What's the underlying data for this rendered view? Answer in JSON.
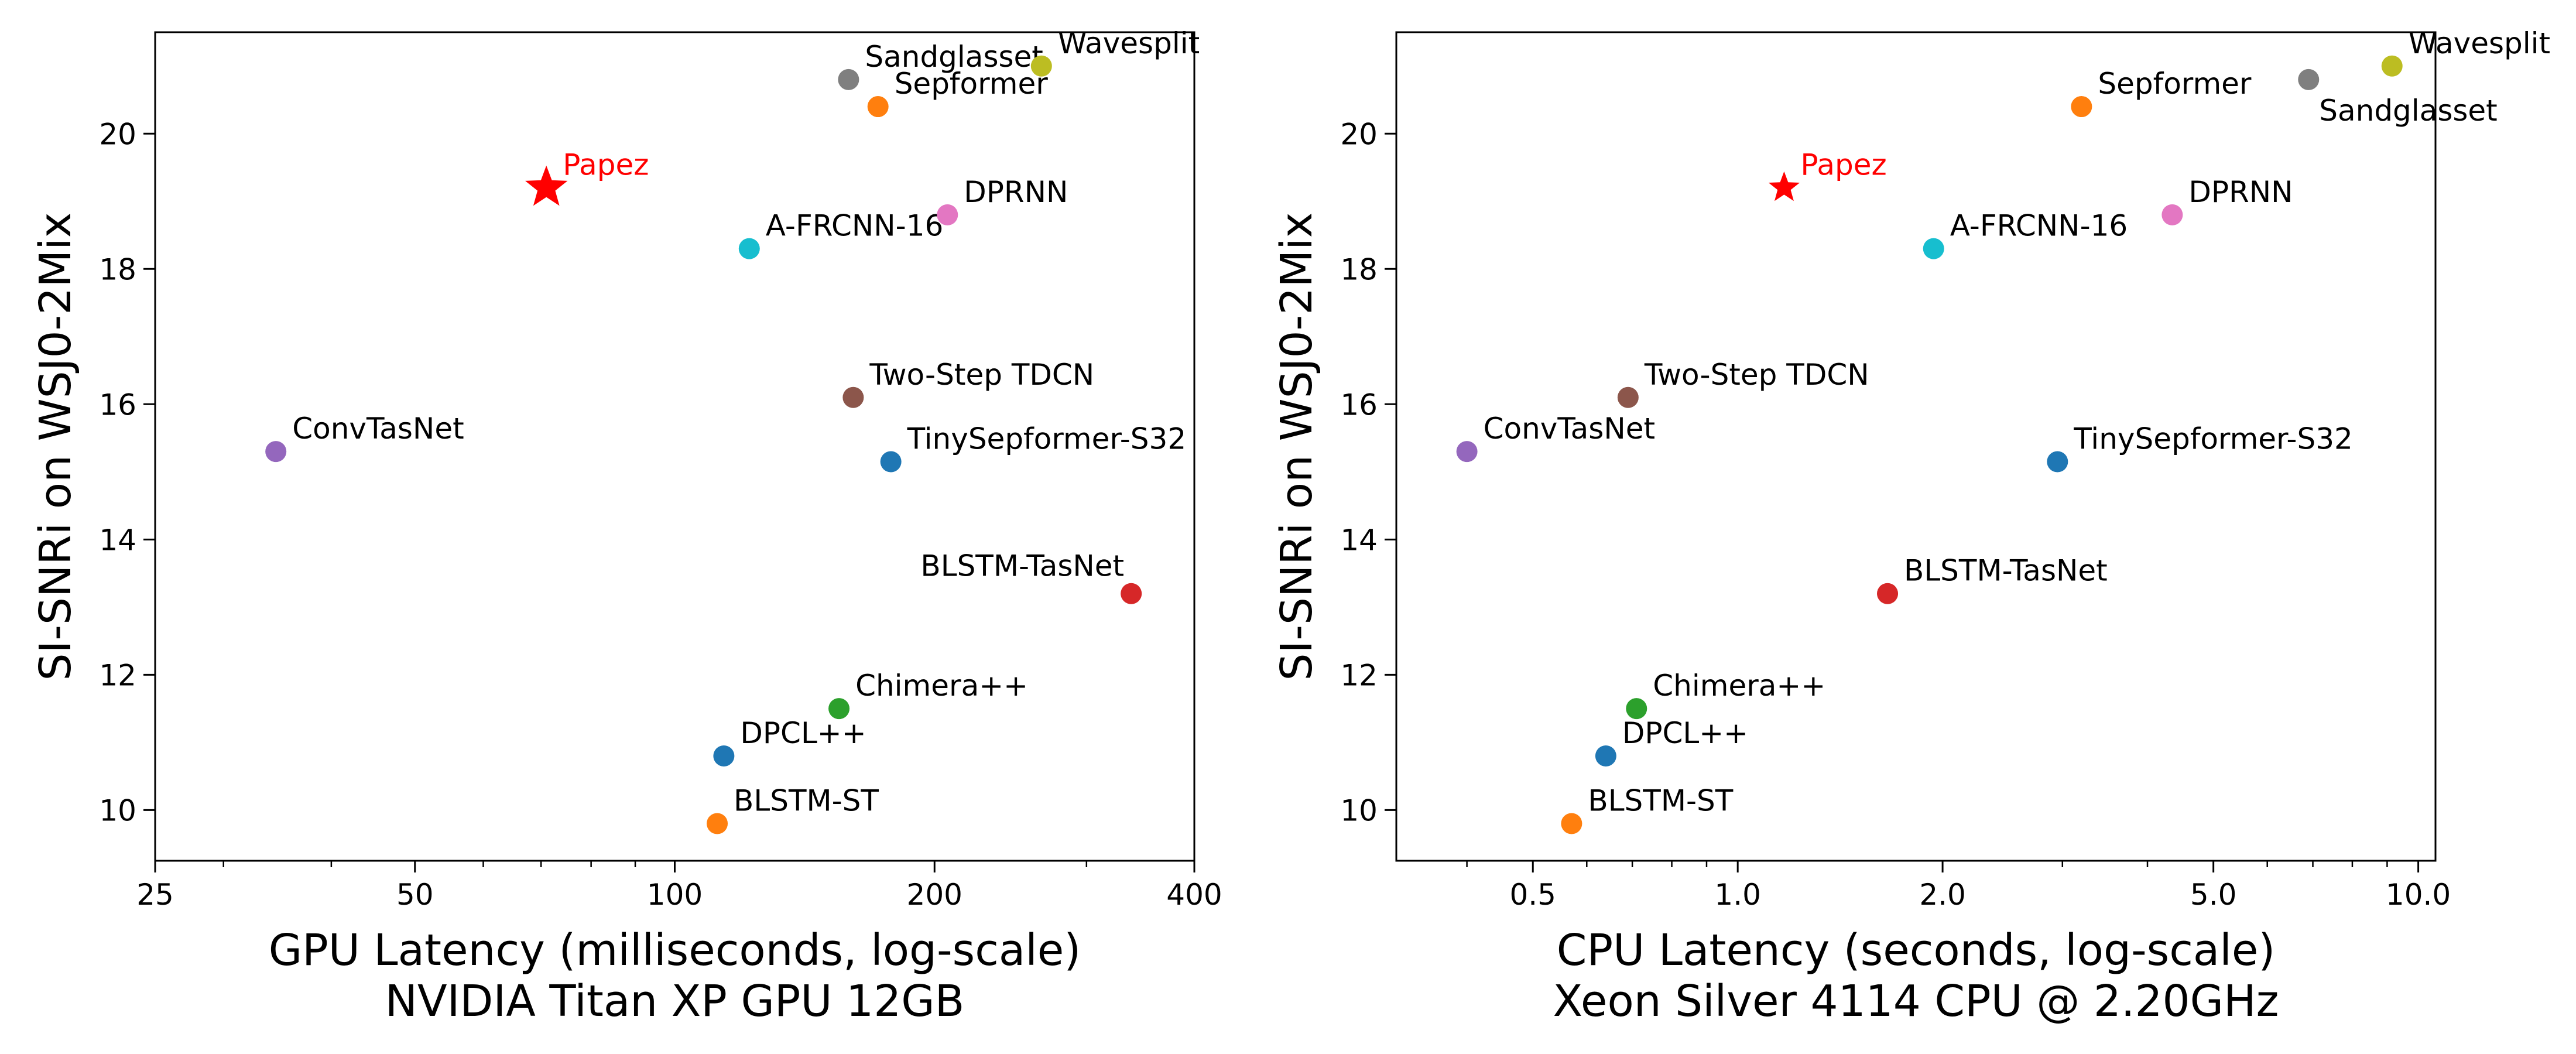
{
  "chart_data": [
    {
      "type": "scatter",
      "title": "",
      "xlabel": "GPU Latency (milliseconds, log-scale)",
      "xlabel_line2": "NVIDIA Titan XP GPU 12GB",
      "ylabel": "SI-SNRi on WSJ0-2Mix",
      "xscale": "log",
      "xlim": [
        25,
        400
      ],
      "ylim": [
        9.25,
        21.5
      ],
      "xticks": [
        25,
        50,
        100,
        200,
        400
      ],
      "xtick_labels": [
        "25",
        "50",
        "100",
        "200",
        "400"
      ],
      "yticks": [
        10,
        12,
        14,
        16,
        18,
        20
      ],
      "ytick_labels": [
        "10",
        "12",
        "14",
        "16",
        "18",
        "20"
      ],
      "grid": false,
      "legend": "none",
      "points": [
        {
          "label": "Papez",
          "x": 71,
          "y": 19.2,
          "color": "#ff0000",
          "marker": "star",
          "label_pos": "right"
        },
        {
          "label": "ConvTasNet",
          "x": 34.5,
          "y": 15.3,
          "color": "#9467bd",
          "marker": "circle",
          "label_pos": "right"
        },
        {
          "label": "A-FRCNN-16",
          "x": 122,
          "y": 18.3,
          "color": "#17becf",
          "marker": "circle",
          "label_pos": "right"
        },
        {
          "label": "DPRNN",
          "x": 207,
          "y": 18.8,
          "color": "#e377c2",
          "marker": "circle",
          "label_pos": "right"
        },
        {
          "label": "Sandglasset",
          "x": 159,
          "y": 20.8,
          "color": "#7f7f7f",
          "marker": "circle",
          "label_pos": "right"
        },
        {
          "label": "Sepformer",
          "x": 172,
          "y": 20.4,
          "color": "#ff7f0e",
          "marker": "circle",
          "label_pos": "right"
        },
        {
          "label": "Wavesplit",
          "x": 266,
          "y": 21.0,
          "color": "#bcbd22",
          "marker": "circle",
          "label_pos": "right"
        },
        {
          "label": "Two-Step TDCN",
          "x": 161,
          "y": 16.1,
          "color": "#8c564b",
          "marker": "circle",
          "label_pos": "right"
        },
        {
          "label": "TinySepformer-S32",
          "x": 178,
          "y": 15.15,
          "color": "#1f77b4",
          "marker": "circle",
          "label_pos": "right"
        },
        {
          "label": "BLSTM-TasNet",
          "x": 338,
          "y": 13.2,
          "color": "#d62728",
          "marker": "circle",
          "label_pos": "left"
        },
        {
          "label": "Chimera++",
          "x": 155,
          "y": 11.5,
          "color": "#2ca02c",
          "marker": "circle",
          "label_pos": "right"
        },
        {
          "label": "DPCL++",
          "x": 114,
          "y": 10.8,
          "color": "#1f77b4",
          "marker": "circle",
          "label_pos": "right"
        },
        {
          "label": "BLSTM-ST",
          "x": 112,
          "y": 9.8,
          "color": "#ff7f0e",
          "marker": "circle",
          "label_pos": "right"
        }
      ]
    },
    {
      "type": "scatter",
      "title": "",
      "xlabel": "CPU Latency (seconds, log-scale)",
      "xlabel_line2": "Xeon Silver 4114 CPU @ 2.20GHz",
      "ylabel": "SI-SNRi on WSJ0-2Mix",
      "xscale": "log",
      "xlim": [
        0.315,
        10.6
      ],
      "ylim": [
        9.25,
        21.5
      ],
      "xticks": [
        0.5,
        1.0,
        2.0,
        5.0,
        10.0
      ],
      "xtick_labels": [
        "0.5",
        "1.0",
        "2.0",
        "5.0",
        "10.0"
      ],
      "yticks": [
        10,
        12,
        14,
        16,
        18,
        20
      ],
      "ytick_labels": [
        "10",
        "12",
        "14",
        "16",
        "18",
        "20"
      ],
      "grid": false,
      "legend": "none",
      "points": [
        {
          "label": "Papez",
          "x": 1.17,
          "y": 19.2,
          "color": "#ff0000",
          "marker": "star",
          "label_pos": "right"
        },
        {
          "label": "ConvTasNet",
          "x": 0.4,
          "y": 15.3,
          "color": "#9467bd",
          "marker": "circle",
          "label_pos": "right"
        },
        {
          "label": "A-FRCNN-16",
          "x": 1.94,
          "y": 18.3,
          "color": "#17becf",
          "marker": "circle",
          "label_pos": "right"
        },
        {
          "label": "DPRNN",
          "x": 4.35,
          "y": 18.8,
          "color": "#e377c2",
          "marker": "circle",
          "label_pos": "right"
        },
        {
          "label": "Sepformer",
          "x": 3.2,
          "y": 20.4,
          "color": "#ff7f0e",
          "marker": "circle",
          "label_pos": "right"
        },
        {
          "label": "Sandglasset",
          "x": 6.9,
          "y": 20.8,
          "color": "#7f7f7f",
          "marker": "circle",
          "label_pos": "below-right"
        },
        {
          "label": "Wavesplit",
          "x": 9.15,
          "y": 21.0,
          "color": "#bcbd22",
          "marker": "circle",
          "label_pos": "right"
        },
        {
          "label": "Two-Step TDCN",
          "x": 0.69,
          "y": 16.1,
          "color": "#8c564b",
          "marker": "circle",
          "label_pos": "right"
        },
        {
          "label": "TinySepformer-S32",
          "x": 2.95,
          "y": 15.15,
          "color": "#1f77b4",
          "marker": "circle",
          "label_pos": "right"
        },
        {
          "label": "BLSTM-TasNet",
          "x": 1.66,
          "y": 13.2,
          "color": "#d62728",
          "marker": "circle",
          "label_pos": "right"
        },
        {
          "label": "Chimera++",
          "x": 0.71,
          "y": 11.5,
          "color": "#2ca02c",
          "marker": "circle",
          "label_pos": "right"
        },
        {
          "label": "DPCL++",
          "x": 0.64,
          "y": 10.8,
          "color": "#1f77b4",
          "marker": "circle",
          "label_pos": "right"
        },
        {
          "label": "BLSTM-ST",
          "x": 0.57,
          "y": 9.8,
          "color": "#ff7f0e",
          "marker": "circle",
          "label_pos": "right"
        }
      ]
    }
  ]
}
